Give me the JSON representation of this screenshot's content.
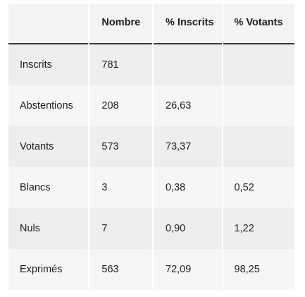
{
  "table": {
    "headers": [
      "",
      "Nombre",
      "% Inscrits",
      "% Votants"
    ],
    "rows": [
      {
        "label": "Inscrits",
        "nombre": "781",
        "pct_inscrits": "",
        "pct_votants": ""
      },
      {
        "label": "Abstentions",
        "nombre": "208",
        "pct_inscrits": "26,63",
        "pct_votants": ""
      },
      {
        "label": "Votants",
        "nombre": "573",
        "pct_inscrits": "73,37",
        "pct_votants": ""
      },
      {
        "label": "Blancs",
        "nombre": "3",
        "pct_inscrits": "0,38",
        "pct_votants": "0,52"
      },
      {
        "label": "Nuls",
        "nombre": "7",
        "pct_inscrits": "0,90",
        "pct_votants": "1,22"
      },
      {
        "label": "Exprimés",
        "nombre": "563",
        "pct_inscrits": "72,09",
        "pct_votants": "98,25"
      }
    ]
  },
  "colors": {
    "header_bg": "#f4f4f4",
    "row_bg_a": "#eeeeee",
    "row_bg_b": "#f6f6f6",
    "header_rule": "#3a3a3a",
    "text": "#1e1e1e"
  }
}
